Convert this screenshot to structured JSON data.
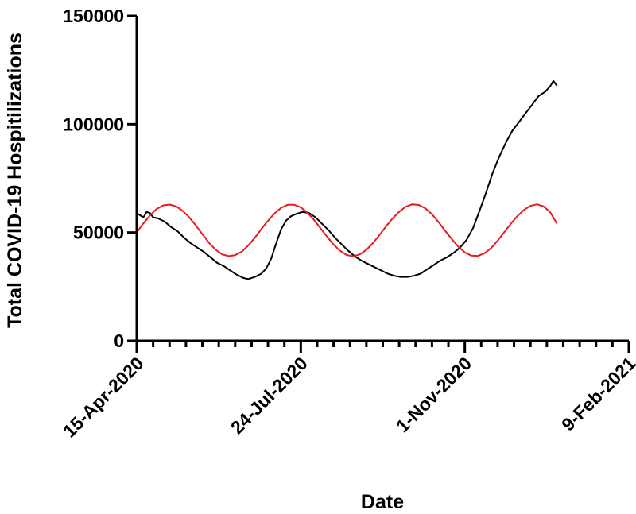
{
  "chart_data": {
    "type": "line",
    "title": "",
    "xlabel": "Date",
    "ylabel": "Total  COVID-19 Hospitilizations",
    "x_axis": {
      "start_date": "2020-04-15",
      "end_date": "2021-02-09",
      "ticks": [
        {
          "date": "2020-04-15",
          "label": "15-Apr-2020"
        },
        {
          "date": "2020-07-24",
          "label": "24-Jul-2020"
        },
        {
          "date": "2020-11-01",
          "label": "1-Nov-2020"
        },
        {
          "date": "2021-02-09",
          "label": "9-Feb-2021"
        }
      ]
    },
    "y_axis": {
      "ylim": [
        0,
        150000
      ],
      "ticks": [
        {
          "value": 0,
          "label": "0"
        },
        {
          "value": 50000,
          "label": "50000"
        },
        {
          "value": 100000,
          "label": "100000"
        },
        {
          "value": 150000,
          "label": "150000"
        }
      ]
    },
    "grid": false,
    "legend": "none",
    "series": [
      {
        "color": "#000000",
        "points": [
          {
            "x": "2020-04-15",
            "y": 59000
          },
          {
            "x": "2020-04-17",
            "y": 58000
          },
          {
            "x": "2020-04-19",
            "y": 57000
          },
          {
            "x": "2020-04-21",
            "y": 59500
          },
          {
            "x": "2020-04-23",
            "y": 59000
          },
          {
            "x": "2020-04-25",
            "y": 57000
          },
          {
            "x": "2020-04-28",
            "y": 56500
          },
          {
            "x": "2020-05-02",
            "y": 55000
          },
          {
            "x": "2020-05-06",
            "y": 52500
          },
          {
            "x": "2020-05-10",
            "y": 50500
          },
          {
            "x": "2020-05-14",
            "y": 47500
          },
          {
            "x": "2020-05-18",
            "y": 45000
          },
          {
            "x": "2020-05-22",
            "y": 43000
          },
          {
            "x": "2020-05-26",
            "y": 41000
          },
          {
            "x": "2020-05-30",
            "y": 38500
          },
          {
            "x": "2020-06-03",
            "y": 36000
          },
          {
            "x": "2020-06-07",
            "y": 34500
          },
          {
            "x": "2020-06-11",
            "y": 32500
          },
          {
            "x": "2020-06-15",
            "y": 30500
          },
          {
            "x": "2020-06-19",
            "y": 29000
          },
          {
            "x": "2020-06-22",
            "y": 28500
          },
          {
            "x": "2020-06-26",
            "y": 29500
          },
          {
            "x": "2020-06-30",
            "y": 31000
          },
          {
            "x": "2020-07-03",
            "y": 33500
          },
          {
            "x": "2020-07-06",
            "y": 38000
          },
          {
            "x": "2020-07-09",
            "y": 45000
          },
          {
            "x": "2020-07-12",
            "y": 51500
          },
          {
            "x": "2020-07-15",
            "y": 55500
          },
          {
            "x": "2020-07-18",
            "y": 57500
          },
          {
            "x": "2020-07-21",
            "y": 58500
          },
          {
            "x": "2020-07-25",
            "y": 59500
          },
          {
            "x": "2020-07-29",
            "y": 59000
          },
          {
            "x": "2020-08-02",
            "y": 57000
          },
          {
            "x": "2020-08-06",
            "y": 54000
          },
          {
            "x": "2020-08-10",
            "y": 51000
          },
          {
            "x": "2020-08-14",
            "y": 47500
          },
          {
            "x": "2020-08-18",
            "y": 44500
          },
          {
            "x": "2020-08-22",
            "y": 41500
          },
          {
            "x": "2020-08-26",
            "y": 39000
          },
          {
            "x": "2020-08-30",
            "y": 37000
          },
          {
            "x": "2020-09-03",
            "y": 35500
          },
          {
            "x": "2020-09-07",
            "y": 34000
          },
          {
            "x": "2020-09-11",
            "y": 32500
          },
          {
            "x": "2020-09-15",
            "y": 31000
          },
          {
            "x": "2020-09-19",
            "y": 30000
          },
          {
            "x": "2020-09-23",
            "y": 29500
          },
          {
            "x": "2020-09-27",
            "y": 29500
          },
          {
            "x": "2020-10-01",
            "y": 30000
          },
          {
            "x": "2020-10-05",
            "y": 31000
          },
          {
            "x": "2020-10-09",
            "y": 33000
          },
          {
            "x": "2020-10-13",
            "y": 35000
          },
          {
            "x": "2020-10-17",
            "y": 37000
          },
          {
            "x": "2020-10-21",
            "y": 38500
          },
          {
            "x": "2020-10-25",
            "y": 40500
          },
          {
            "x": "2020-10-29",
            "y": 43000
          },
          {
            "x": "2020-11-02",
            "y": 46500
          },
          {
            "x": "2020-11-06",
            "y": 52000
          },
          {
            "x": "2020-11-10",
            "y": 60000
          },
          {
            "x": "2020-11-14",
            "y": 68500
          },
          {
            "x": "2020-11-18",
            "y": 77500
          },
          {
            "x": "2020-11-22",
            "y": 85000
          },
          {
            "x": "2020-11-26",
            "y": 91500
          },
          {
            "x": "2020-11-30",
            "y": 97000
          },
          {
            "x": "2020-12-04",
            "y": 101000
          },
          {
            "x": "2020-12-08",
            "y": 105000
          },
          {
            "x": "2020-12-12",
            "y": 109000
          },
          {
            "x": "2020-12-16",
            "y": 113000
          },
          {
            "x": "2020-12-20",
            "y": 115000
          },
          {
            "x": "2020-12-23",
            "y": 117500
          },
          {
            "x": "2020-12-25",
            "y": 120000
          },
          {
            "x": "2020-12-27",
            "y": 118000
          }
        ]
      },
      {
        "color": "#e8191f",
        "points": [
          {
            "x": "2020-04-15",
            "y": 50000
          },
          {
            "x": "2020-04-19",
            "y": 54200
          },
          {
            "x": "2020-04-23",
            "y": 57800
          },
          {
            "x": "2020-04-27",
            "y": 60800
          },
          {
            "x": "2020-05-01",
            "y": 62500
          },
          {
            "x": "2020-05-05",
            "y": 62900
          },
          {
            "x": "2020-05-09",
            "y": 62100
          },
          {
            "x": "2020-05-13",
            "y": 60000
          },
          {
            "x": "2020-05-17",
            "y": 57000
          },
          {
            "x": "2020-05-21",
            "y": 53300
          },
          {
            "x": "2020-05-25",
            "y": 49200
          },
          {
            "x": "2020-05-29",
            "y": 45300
          },
          {
            "x": "2020-06-02",
            "y": 42100
          },
          {
            "x": "2020-06-06",
            "y": 39900
          },
          {
            "x": "2020-06-10",
            "y": 39100
          },
          {
            "x": "2020-06-14",
            "y": 39500
          },
          {
            "x": "2020-06-18",
            "y": 41200
          },
          {
            "x": "2020-06-22",
            "y": 44000
          },
          {
            "x": "2020-06-26",
            "y": 47600
          },
          {
            "x": "2020-06-30",
            "y": 51600
          },
          {
            "x": "2020-07-04",
            "y": 55400
          },
          {
            "x": "2020-07-08",
            "y": 58800
          },
          {
            "x": "2020-07-12",
            "y": 61400
          },
          {
            "x": "2020-07-16",
            "y": 62800
          },
          {
            "x": "2020-07-20",
            "y": 62800
          },
          {
            "x": "2020-07-24",
            "y": 61600
          },
          {
            "x": "2020-07-28",
            "y": 59200
          },
          {
            "x": "2020-08-01",
            "y": 55900
          },
          {
            "x": "2020-08-05",
            "y": 52000
          },
          {
            "x": "2020-08-09",
            "y": 48100
          },
          {
            "x": "2020-08-13",
            "y": 44400
          },
          {
            "x": "2020-08-17",
            "y": 41500
          },
          {
            "x": "2020-08-21",
            "y": 39600
          },
          {
            "x": "2020-08-25",
            "y": 39000
          },
          {
            "x": "2020-08-29",
            "y": 39900
          },
          {
            "x": "2020-09-02",
            "y": 42000
          },
          {
            "x": "2020-09-06",
            "y": 45100
          },
          {
            "x": "2020-09-10",
            "y": 48900
          },
          {
            "x": "2020-09-14",
            "y": 52800
          },
          {
            "x": "2020-09-18",
            "y": 56500
          },
          {
            "x": "2020-09-22",
            "y": 59600
          },
          {
            "x": "2020-09-26",
            "y": 61900
          },
          {
            "x": "2020-09-30",
            "y": 63000
          },
          {
            "x": "2020-10-04",
            "y": 62700
          },
          {
            "x": "2020-10-08",
            "y": 61100
          },
          {
            "x": "2020-10-12",
            "y": 58400
          },
          {
            "x": "2020-10-16",
            "y": 54800
          },
          {
            "x": "2020-10-20",
            "y": 50800
          },
          {
            "x": "2020-10-24",
            "y": 47000
          },
          {
            "x": "2020-10-28",
            "y": 43500
          },
          {
            "x": "2020-11-01",
            "y": 40800
          },
          {
            "x": "2020-11-05",
            "y": 39300
          },
          {
            "x": "2020-11-09",
            "y": 39200
          },
          {
            "x": "2020-11-13",
            "y": 40400
          },
          {
            "x": "2020-11-17",
            "y": 42800
          },
          {
            "x": "2020-11-21",
            "y": 46200
          },
          {
            "x": "2020-11-25",
            "y": 50100
          },
          {
            "x": "2020-11-29",
            "y": 54000
          },
          {
            "x": "2020-12-03",
            "y": 57500
          },
          {
            "x": "2020-12-07",
            "y": 60400
          },
          {
            "x": "2020-12-11",
            "y": 62300
          },
          {
            "x": "2020-12-15",
            "y": 63000
          },
          {
            "x": "2020-12-19",
            "y": 62100
          },
          {
            "x": "2020-12-23",
            "y": 59400
          },
          {
            "x": "2020-12-27",
            "y": 54300
          }
        ]
      }
    ]
  }
}
